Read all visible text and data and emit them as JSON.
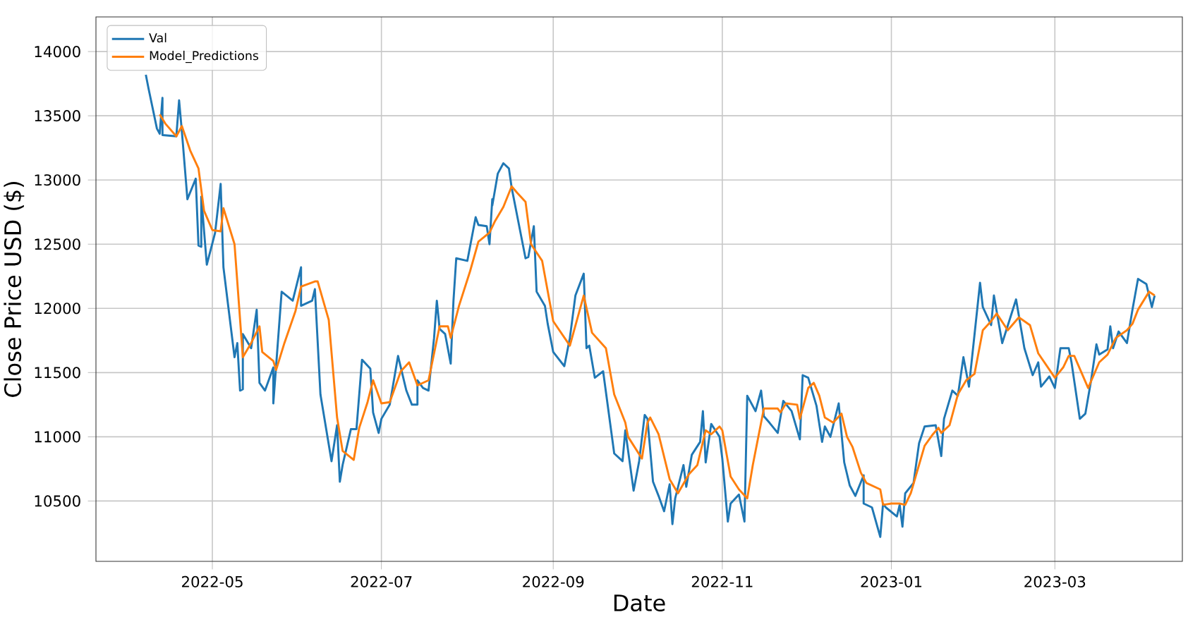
{
  "chart_data": {
    "type": "line",
    "xlabel": "Date",
    "ylabel": "Close Price USD ($)",
    "xlim": [
      "2022-03-20",
      "2023-04-16"
    ],
    "ylim": [
      10030,
      14270
    ],
    "xticks": [
      "2022-05",
      "2022-07",
      "2022-09",
      "2022-11",
      "2023-01",
      "2023-03"
    ],
    "yticks": [
      10500,
      11000,
      11500,
      12000,
      12500,
      13000,
      13500,
      14000
    ],
    "grid": true,
    "legend": "top left",
    "series": [
      {
        "name": "Val",
        "color": "#1f77b4",
        "x": [
          "2022-04-07",
          "2022-04-08",
          "2022-04-11",
          "2022-04-12",
          "2022-04-13",
          "2022-04-13",
          "2022-04-18",
          "2022-04-19",
          "2022-04-20",
          "2022-04-22",
          "2022-04-25",
          "2022-04-26",
          "2022-04-27",
          "2022-04-27",
          "2022-04-29",
          "2022-05-02",
          "2022-05-04",
          "2022-05-05",
          "2022-05-09",
          "2022-05-10",
          "2022-05-11",
          "2022-05-12",
          "2022-05-12",
          "2022-05-15",
          "2022-05-17",
          "2022-05-18",
          "2022-05-20",
          "2022-05-23",
          "2022-05-23",
          "2022-05-26",
          "2022-05-30",
          "2022-06-02",
          "2022-06-02",
          "2022-06-06",
          "2022-06-07",
          "2022-06-09",
          "2022-06-13",
          "2022-06-13",
          "2022-06-15",
          "2022-06-16",
          "2022-06-17",
          "2022-06-20",
          "2022-06-22",
          "2022-06-24",
          "2022-06-27",
          "2022-06-28",
          "2022-06-30",
          "2022-07-01",
          "2022-07-04",
          "2022-07-07",
          "2022-07-10",
          "2022-07-12",
          "2022-07-14",
          "2022-07-14",
          "2022-07-16",
          "2022-07-18",
          "2022-07-20",
          "2022-07-21",
          "2022-07-22",
          "2022-07-24",
          "2022-07-26",
          "2022-07-27",
          "2022-07-28",
          "2022-08-01",
          "2022-08-04",
          "2022-08-05",
          "2022-08-08",
          "2022-08-09",
          "2022-08-10",
          "2022-08-10",
          "2022-08-12",
          "2022-08-14",
          "2022-08-16",
          "2022-08-17",
          "2022-08-19",
          "2022-08-22",
          "2022-08-23",
          "2022-08-25",
          "2022-08-26",
          "2022-08-29",
          "2022-08-30",
          "2022-09-01",
          "2022-09-05",
          "2022-09-07",
          "2022-09-09",
          "2022-09-12",
          "2022-09-13",
          "2022-09-14",
          "2022-09-16",
          "2022-09-19",
          "2022-09-23",
          "2022-09-26",
          "2022-09-27",
          "2022-09-30",
          "2022-10-02",
          "2022-10-04",
          "2022-10-05",
          "2022-10-07",
          "2022-10-09",
          "2022-10-11",
          "2022-10-13",
          "2022-10-14",
          "2022-10-15",
          "2022-10-18",
          "2022-10-19",
          "2022-10-21",
          "2022-10-24",
          "2022-10-25",
          "2022-10-26",
          "2022-10-28",
          "2022-10-31",
          "2022-11-01",
          "2022-11-03",
          "2022-11-04",
          "2022-11-07",
          "2022-11-09",
          "2022-11-10",
          "2022-11-13",
          "2022-11-15",
          "2022-11-16",
          "2022-11-18",
          "2022-11-21",
          "2022-11-23",
          "2022-11-26",
          "2022-11-29",
          "2022-11-30",
          "2022-12-02",
          "2022-12-05",
          "2022-12-07",
          "2022-12-08",
          "2022-12-10",
          "2022-12-13",
          "2022-12-15",
          "2022-12-17",
          "2022-12-19",
          "2022-12-22",
          "2022-12-22",
          "2022-12-25",
          "2022-12-28",
          "2022-12-29",
          "2022-12-30",
          "2023-01-03",
          "2023-01-04",
          "2023-01-05",
          "2023-01-06",
          "2023-01-09",
          "2023-01-11",
          "2023-01-13",
          "2023-01-17",
          "2023-01-19",
          "2023-01-20",
          "2023-01-23",
          "2023-01-25",
          "2023-01-27",
          "2023-01-29",
          "2023-02-02",
          "2023-02-03",
          "2023-02-06",
          "2023-02-07",
          "2023-02-10",
          "2023-02-15",
          "2023-02-18",
          "2023-02-21",
          "2023-02-23",
          "2023-02-24",
          "2023-02-27",
          "2023-03-01",
          "2023-03-03",
          "2023-03-06",
          "2023-03-07",
          "2023-03-10",
          "2023-03-12",
          "2023-03-14",
          "2023-03-16",
          "2023-03-17",
          "2023-03-20",
          "2023-03-21",
          "2023-03-22",
          "2023-03-24",
          "2023-03-27",
          "2023-03-29",
          "2023-03-31",
          "2023-04-03",
          "2023-04-04",
          "2023-04-05",
          "2023-04-06"
        ],
        "values": [
          13820,
          13710,
          13400,
          13360,
          13640,
          13350,
          13340,
          13620,
          13380,
          12850,
          13010,
          12490,
          12480,
          12870,
          12340,
          12590,
          12970,
          12320,
          11620,
          11730,
          11360,
          11370,
          11800,
          11690,
          11990,
          11420,
          11360,
          11540,
          11260,
          12130,
          12060,
          12320,
          12020,
          12060,
          12150,
          11330,
          10810,
          10810,
          11090,
          10650,
          10780,
          11060,
          11060,
          11600,
          11530,
          11190,
          11030,
          11140,
          11250,
          11630,
          11360,
          11250,
          11250,
          11440,
          11380,
          11360,
          11770,
          12060,
          11840,
          11800,
          11570,
          12060,
          12390,
          12370,
          12710,
          12650,
          12640,
          12500,
          12850,
          12800,
          13050,
          13130,
          13090,
          12940,
          12720,
          12390,
          12400,
          12640,
          12130,
          12020,
          11880,
          11660,
          11550,
          11770,
          12100,
          12270,
          11690,
          11710,
          11460,
          11510,
          10870,
          10810,
          11050,
          10580,
          10810,
          11170,
          11140,
          10650,
          10540,
          10420,
          10630,
          10320,
          10520,
          10780,
          10610,
          10860,
          10960,
          11200,
          10800,
          11100,
          11000,
          10830,
          10340,
          10480,
          10550,
          10340,
          11320,
          11200,
          11360,
          11160,
          11110,
          11030,
          11280,
          11200,
          10980,
          11480,
          11460,
          11240,
          10960,
          11080,
          11000,
          11260,
          10800,
          10620,
          10540,
          10700,
          10480,
          10450,
          10220,
          10480,
          10450,
          10380,
          10470,
          10300,
          10560,
          10640,
          10950,
          11080,
          11090,
          10850,
          11140,
          11360,
          11320,
          11620,
          11390,
          12200,
          12010,
          11870,
          12100,
          11730,
          12070,
          11690,
          11480,
          11580,
          11390,
          11470,
          11380,
          11690,
          11690,
          11580,
          11140,
          11180,
          11430,
          11720,
          11640,
          11680,
          11860,
          11690,
          11820,
          11730,
          11990,
          12230,
          12190,
          12100,
          12010,
          12100
        ]
      },
      {
        "name": "Model_Predictions",
        "color": "#ff7f0e",
        "x": [
          "2022-04-12",
          "2022-04-14",
          "2022-04-18",
          "2022-04-20",
          "2022-04-23",
          "2022-04-26",
          "2022-04-28",
          "2022-05-01",
          "2022-05-04",
          "2022-05-05",
          "2022-05-09",
          "2022-05-12",
          "2022-05-15",
          "2022-05-18",
          "2022-05-19",
          "2022-05-23",
          "2022-05-24",
          "2022-05-27",
          "2022-05-31",
          "2022-06-02",
          "2022-06-07",
          "2022-06-08",
          "2022-06-12",
          "2022-06-15",
          "2022-06-17",
          "2022-06-21",
          "2022-06-23",
          "2022-06-26",
          "2022-06-28",
          "2022-07-01",
          "2022-07-04",
          "2022-07-08",
          "2022-07-11",
          "2022-07-14",
          "2022-07-18",
          "2022-07-22",
          "2022-07-25",
          "2022-07-26",
          "2022-07-29",
          "2022-08-02",
          "2022-08-05",
          "2022-08-09",
          "2022-08-11",
          "2022-08-14",
          "2022-08-17",
          "2022-08-19",
          "2022-08-22",
          "2022-08-24",
          "2022-08-28",
          "2022-09-01",
          "2022-09-07",
          "2022-09-12",
          "2022-09-15",
          "2022-09-20",
          "2022-09-23",
          "2022-09-27",
          "2022-09-28",
          "2022-10-03",
          "2022-10-05",
          "2022-10-06",
          "2022-10-09",
          "2022-10-13",
          "2022-10-16",
          "2022-10-20",
          "2022-10-23",
          "2022-10-26",
          "2022-10-28",
          "2022-10-31",
          "2022-11-01",
          "2022-11-04",
          "2022-11-07",
          "2022-11-10",
          "2022-11-12",
          "2022-11-16",
          "2022-11-21",
          "2022-11-22",
          "2022-11-24",
          "2022-11-28",
          "2022-11-29",
          "2022-12-02",
          "2022-12-04",
          "2022-12-06",
          "2022-12-08",
          "2022-12-11",
          "2022-12-14",
          "2022-12-16",
          "2022-12-18",
          "2022-12-21",
          "2022-12-23",
          "2022-12-28",
          "2022-12-29",
          "2023-01-01",
          "2023-01-04",
          "2023-01-06",
          "2023-01-08",
          "2023-01-13",
          "2023-01-16",
          "2023-01-18",
          "2023-01-19",
          "2023-01-22",
          "2023-01-25",
          "2023-01-28",
          "2023-01-31",
          "2023-02-03",
          "2023-02-06",
          "2023-02-08",
          "2023-02-12",
          "2023-02-16",
          "2023-02-20",
          "2023-02-23",
          "2023-03-01",
          "2023-03-04",
          "2023-03-06",
          "2023-03-08",
          "2023-03-13",
          "2023-03-17",
          "2023-03-20",
          "2023-03-23",
          "2023-03-27",
          "2023-03-29",
          "2023-03-31",
          "2023-04-04",
          "2023-04-06"
        ],
        "values": [
          13510,
          13440,
          13340,
          13420,
          13230,
          13090,
          12760,
          12610,
          12600,
          12780,
          12500,
          11620,
          11730,
          11860,
          11660,
          11590,
          11520,
          11730,
          11980,
          12170,
          12210,
          12210,
          11910,
          11150,
          10890,
          10820,
          11070,
          11270,
          11440,
          11260,
          11270,
          11510,
          11580,
          11400,
          11440,
          11860,
          11860,
          11770,
          12020,
          12290,
          12520,
          12590,
          12680,
          12790,
          12950,
          12900,
          12830,
          12500,
          12370,
          11900,
          11710,
          12100,
          11810,
          11690,
          11330,
          11110,
          11000,
          10830,
          11110,
          11150,
          11020,
          10670,
          10560,
          10710,
          10780,
          11050,
          11020,
          11080,
          11050,
          10690,
          10590,
          10520,
          10780,
          11220,
          11220,
          11190,
          11260,
          11250,
          11140,
          11380,
          11420,
          11320,
          11150,
          11110,
          11180,
          11000,
          10920,
          10720,
          10640,
          10590,
          10470,
          10480,
          10480,
          10470,
          10560,
          10930,
          11020,
          11070,
          11030,
          11090,
          11330,
          11440,
          11490,
          11830,
          11900,
          11960,
          11830,
          11930,
          11870,
          11650,
          11460,
          11540,
          11630,
          11630,
          11380,
          11580,
          11640,
          11770,
          11830,
          11880,
          11990,
          12130,
          12100
        ]
      }
    ]
  }
}
